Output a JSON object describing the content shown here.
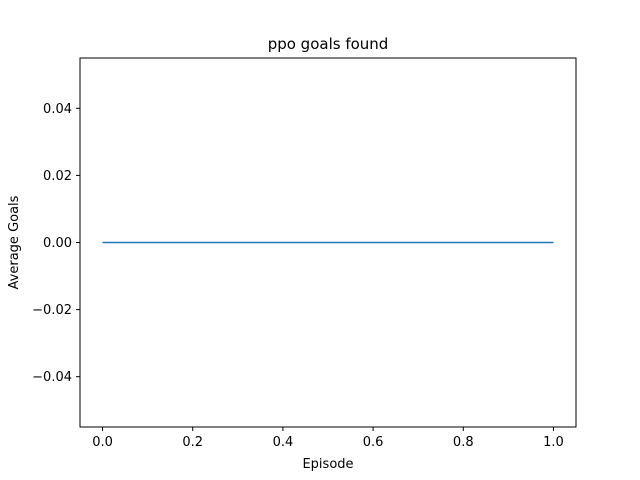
{
  "chart_data": {
    "type": "line",
    "title": "ppo goals found",
    "xlabel": "Episode",
    "ylabel": "Average Goals",
    "xlim": [
      -0.05,
      1.05
    ],
    "ylim": [
      -0.055,
      0.055
    ],
    "xticks": [
      0.0,
      0.2,
      0.4,
      0.6,
      0.8,
      1.0
    ],
    "xtick_labels": [
      "0.0",
      "0.2",
      "0.4",
      "0.6",
      "0.8",
      "1.0"
    ],
    "yticks": [
      0.04,
      0.02,
      0.0,
      -0.02,
      -0.04
    ],
    "ytick_labels": [
      "0.04",
      "0.02",
      "0.00",
      "−0.02",
      "−0.04"
    ],
    "grid": false,
    "series": [
      {
        "x": [
          0.0,
          1.0
        ],
        "y": [
          0.0,
          0.0
        ],
        "color": "#1f77b4"
      }
    ]
  }
}
